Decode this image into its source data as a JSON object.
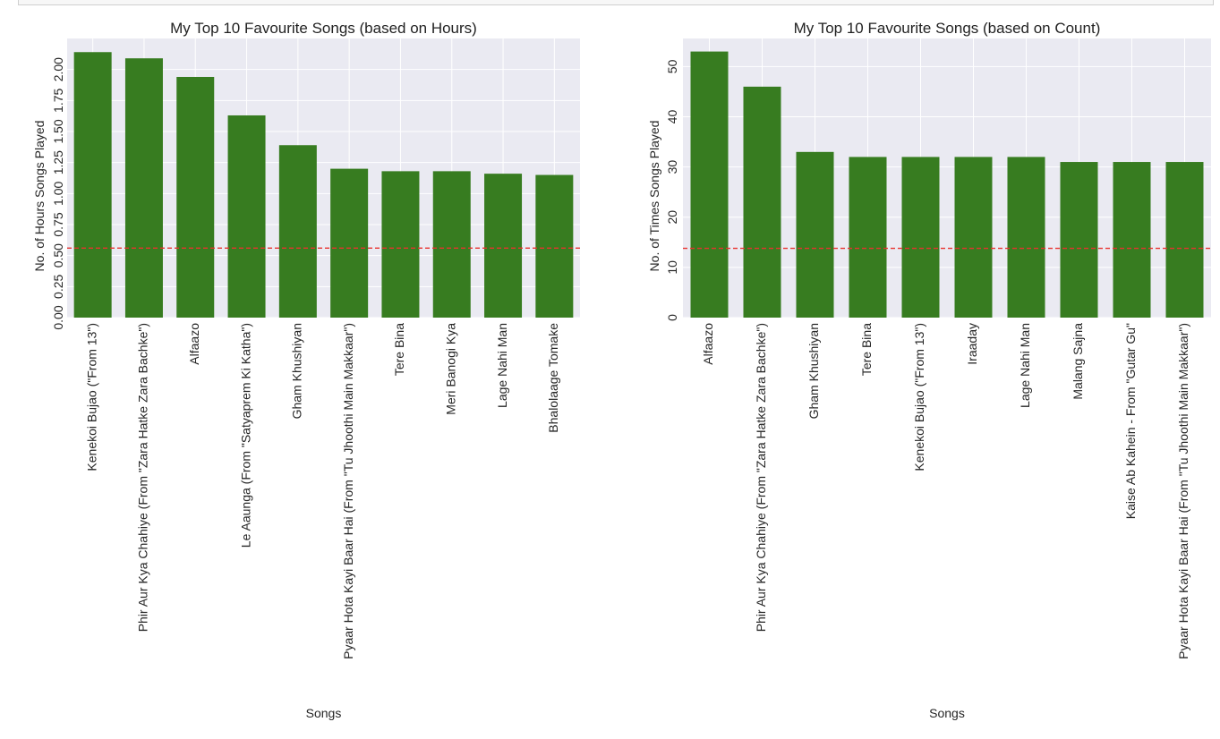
{
  "chart_data": [
    {
      "type": "bar",
      "title": "My Top 10 Favourite Songs (based on Hours)",
      "xlabel": "Songs",
      "ylabel": "No. of Hours Songs Played",
      "categories": [
        "Kenekoi Bujao (\"From 13\")",
        "Phir Aur Kya Chahiye (From \"Zara Hatke Zara Bachke\")",
        "Alfaazo",
        "Le Aaunga (From \"Satyaprem Ki Katha\")",
        "Gham Khushiyan",
        "Pyaar Hota Kayi Baar Hai (From \"Tu Jhoothi Main Makkaar\")",
        "Tere Bina",
        "Meri Banogi Kya",
        "Lage Nahi Man",
        "Bhalolaage Tomake"
      ],
      "values": [
        2.14,
        2.09,
        1.94,
        1.63,
        1.39,
        1.2,
        1.18,
        1.18,
        1.16,
        1.15
      ],
      "yticks": [
        "0.00",
        "0.25",
        "0.50",
        "0.75",
        "1.00",
        "1.25",
        "1.50",
        "1.75",
        "2.00"
      ],
      "ylim": [
        0,
        2.25
      ],
      "reference_line": 0.56,
      "grid": true
    },
    {
      "type": "bar",
      "title": "My Top 10 Favourite Songs (based on Count)",
      "xlabel": "Songs",
      "ylabel": "No. of Times Songs Played",
      "categories": [
        "Alfaazo",
        "Phir Aur Kya Chahiye (From \"Zara Hatke Zara Bachke\")",
        "Gham Khushiyan",
        "Tere Bina",
        "Kenekoi Bujao (\"From 13\")",
        "Iraaday",
        "Lage Nahi Man",
        "Malang Sajna",
        "Kaise Ab Kahein - From \"Gutar Gu\"",
        "Pyaar Hota Kayi Baar Hai (From \"Tu Jhoothi Main Makkaar\")"
      ],
      "values": [
        53,
        46,
        33,
        32,
        32,
        32,
        32,
        31,
        31,
        31
      ],
      "yticks": [
        "0",
        "10",
        "20",
        "30",
        "40",
        "50"
      ],
      "ylim": [
        0,
        55.6
      ],
      "reference_line": 13.8,
      "grid": true
    }
  ],
  "colors": {
    "bar": "#377c20",
    "plot_bg": "#eaeaf2",
    "grid": "#ffffff",
    "reference_line": "#e8322e"
  }
}
